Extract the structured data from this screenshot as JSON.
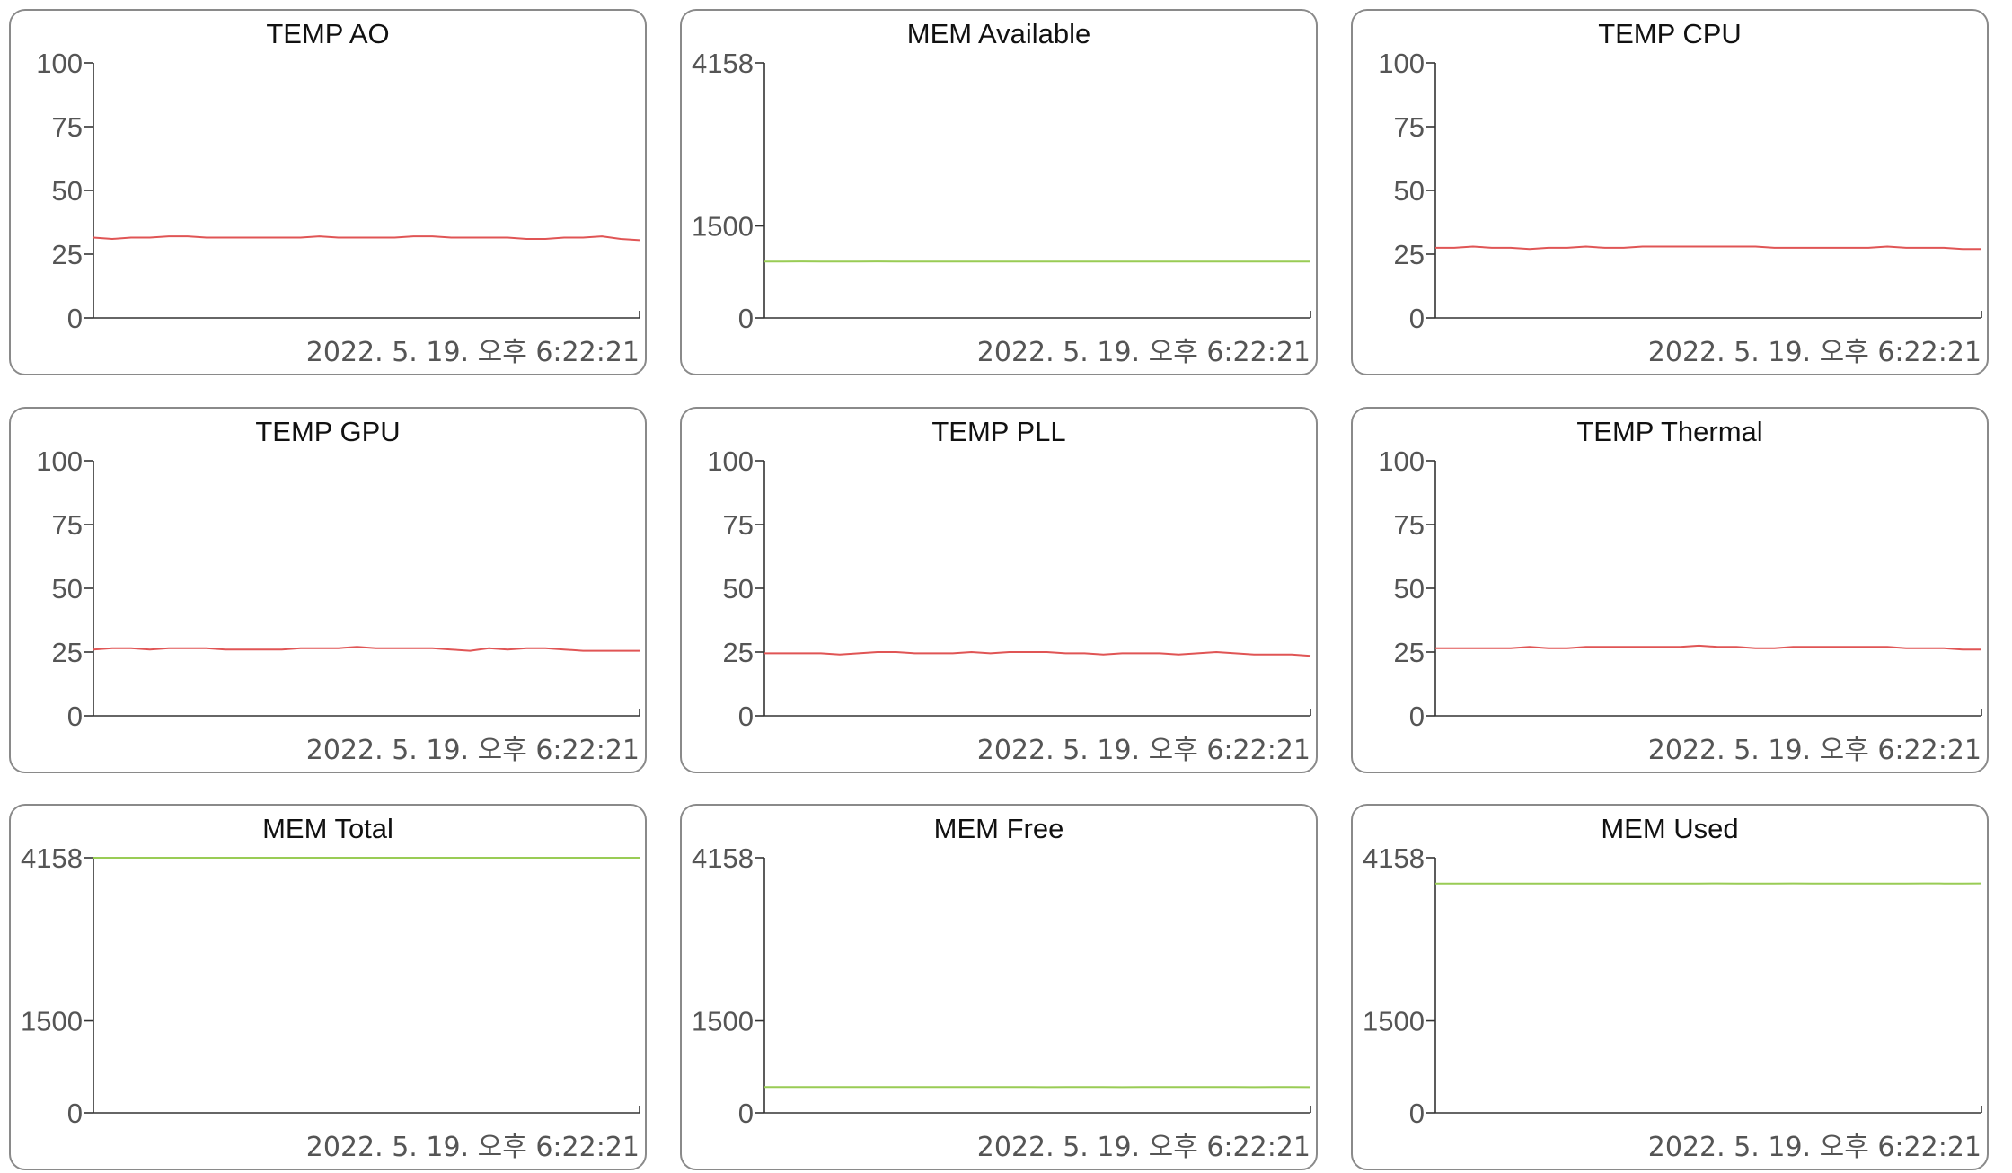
{
  "timestamp": "2022. 5. 19. 오후 6:22:21",
  "colors": {
    "temp": "#e05555",
    "mem": "#99cc55"
  },
  "chart_data": [
    {
      "type": "line",
      "title": "TEMP AO",
      "ylim": [
        0,
        100
      ],
      "yticks": [
        "100",
        "75",
        "50",
        "25",
        "0"
      ],
      "ytick_values": [
        100,
        75,
        50,
        25,
        0
      ],
      "series": [
        {
          "color": "temp",
          "values": [
            31.5,
            31,
            31.5,
            31.5,
            32,
            32,
            31.5,
            31.5,
            31.5,
            31.5,
            31.5,
            31.5,
            32,
            31.5,
            31.5,
            31.5,
            31.5,
            32,
            32,
            31.5,
            31.5,
            31.5,
            31.5,
            31,
            31,
            31.5,
            31.5,
            32,
            31,
            30.5
          ]
        }
      ]
    },
    {
      "type": "line",
      "title": "MEM Available",
      "ylim": [
        0,
        4158
      ],
      "yticks": [
        "4158",
        "1500",
        "0"
      ],
      "ytick_values": [
        4158,
        1500,
        0
      ],
      "series": [
        {
          "color": "mem",
          "values": [
            920,
            920,
            921,
            920,
            920,
            920,
            921,
            920,
            920,
            920,
            920,
            920,
            920,
            920,
            919,
            920,
            920,
            920,
            920,
            920,
            920,
            919,
            920,
            920,
            920,
            920,
            919,
            920,
            920,
            919
          ]
        }
      ]
    },
    {
      "type": "line",
      "title": "TEMP CPU",
      "ylim": [
        0,
        100
      ],
      "yticks": [
        "100",
        "75",
        "50",
        "25",
        "0"
      ],
      "ytick_values": [
        100,
        75,
        50,
        25,
        0
      ],
      "series": [
        {
          "color": "temp",
          "values": [
            27.5,
            27.5,
            28,
            27.5,
            27.5,
            27,
            27.5,
            27.5,
            28,
            27.5,
            27.5,
            28,
            28,
            28,
            28,
            28,
            28,
            28,
            27.5,
            27.5,
            27.5,
            27.5,
            27.5,
            27.5,
            28,
            27.5,
            27.5,
            27.5,
            27,
            27
          ]
        }
      ]
    },
    {
      "type": "line",
      "title": "TEMP GPU",
      "ylim": [
        0,
        100
      ],
      "yticks": [
        "100",
        "75",
        "50",
        "25",
        "0"
      ],
      "ytick_values": [
        100,
        75,
        50,
        25,
        0
      ],
      "series": [
        {
          "color": "temp",
          "values": [
            26,
            26.5,
            26.5,
            26,
            26.5,
            26.5,
            26.5,
            26,
            26,
            26,
            26,
            26.5,
            26.5,
            26.5,
            27,
            26.5,
            26.5,
            26.5,
            26.5,
            26,
            25.5,
            26.5,
            26,
            26.5,
            26.5,
            26,
            25.5,
            25.5,
            25.5,
            25.5
          ]
        }
      ]
    },
    {
      "type": "line",
      "title": "TEMP PLL",
      "ylim": [
        0,
        100
      ],
      "yticks": [
        "100",
        "75",
        "50",
        "25",
        "0"
      ],
      "ytick_values": [
        100,
        75,
        50,
        25,
        0
      ],
      "series": [
        {
          "color": "temp",
          "values": [
            24.5,
            24.5,
            24.5,
            24.5,
            24,
            24.5,
            25,
            25,
            24.5,
            24.5,
            24.5,
            25,
            24.5,
            25,
            25,
            25,
            24.5,
            24.5,
            24,
            24.5,
            24.5,
            24.5,
            24,
            24.5,
            25,
            24.5,
            24,
            24,
            24,
            23.5
          ]
        }
      ]
    },
    {
      "type": "line",
      "title": "TEMP Thermal",
      "ylim": [
        0,
        100
      ],
      "yticks": [
        "100",
        "75",
        "50",
        "25",
        "0"
      ],
      "ytick_values": [
        100,
        75,
        50,
        25,
        0
      ],
      "series": [
        {
          "color": "temp",
          "values": [
            26.5,
            26.5,
            26.5,
            26.5,
            26.5,
            27,
            26.5,
            26.5,
            27,
            27,
            27,
            27,
            27,
            27,
            27.5,
            27,
            27,
            26.5,
            26.5,
            27,
            27,
            27,
            27,
            27,
            27,
            26.5,
            26.5,
            26.5,
            26,
            26
          ]
        }
      ]
    },
    {
      "type": "line",
      "title": "MEM Total",
      "ylim": [
        0,
        4158
      ],
      "yticks": [
        "4158",
        "1500",
        "0"
      ],
      "ytick_values": [
        4158,
        1500,
        0
      ],
      "series": [
        {
          "color": "mem",
          "values": [
            4158,
            4158,
            4158,
            4158,
            4158,
            4158,
            4158,
            4158,
            4158,
            4158,
            4158,
            4158,
            4158,
            4158,
            4158,
            4158,
            4158,
            4158,
            4158,
            4158,
            4158,
            4158,
            4158,
            4158,
            4158,
            4158,
            4158,
            4158,
            4158,
            4158
          ]
        }
      ]
    },
    {
      "type": "line",
      "title": "MEM Free",
      "ylim": [
        0,
        4158
      ],
      "yticks": [
        "4158",
        "1500",
        "0"
      ],
      "ytick_values": [
        4158,
        1500,
        0
      ],
      "series": [
        {
          "color": "mem",
          "values": [
            420,
            420,
            421,
            420,
            420,
            421,
            420,
            420,
            420,
            420,
            421,
            420,
            420,
            420,
            420,
            419,
            420,
            420,
            420,
            419,
            420,
            420,
            420,
            420,
            420,
            420,
            419,
            420,
            420,
            419
          ]
        }
      ]
    },
    {
      "type": "line",
      "title": "MEM Used",
      "ylim": [
        0,
        4158
      ],
      "yticks": [
        "4158",
        "1500",
        "0"
      ],
      "ytick_values": [
        4158,
        1500,
        0
      ],
      "series": [
        {
          "color": "mem",
          "values": [
            3738,
            3738,
            3737,
            3738,
            3738,
            3737,
            3738,
            3738,
            3738,
            3738,
            3737,
            3738,
            3738,
            3738,
            3738,
            3739,
            3738,
            3738,
            3738,
            3739,
            3738,
            3738,
            3738,
            3738,
            3738,
            3738,
            3739,
            3738,
            3738,
            3739
          ]
        }
      ]
    }
  ]
}
